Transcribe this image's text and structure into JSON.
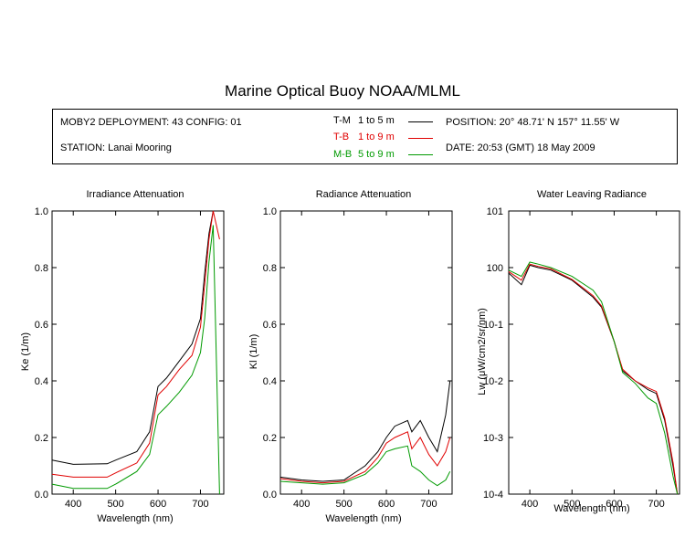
{
  "title": "Marine Optical Buoy NOAA/MLML",
  "info": {
    "deployment": "MOBY2 DEPLOYMENT: 43 CONFIG: 01",
    "station": "STATION: Lanai Mooring",
    "position": "POSITION: 20° 48.71' N   157° 11.55' W",
    "date": "DATE: 20:53 (GMT) 18 May 2009",
    "legend": [
      {
        "code": "T-M",
        "range": "1 to 5  m",
        "color": "#000000"
      },
      {
        "code": "T-B",
        "range": "1 to 9  m",
        "color": "#e00000"
      },
      {
        "code": "M-B",
        "range": "5 to 9  m",
        "color": "#009a00"
      }
    ]
  },
  "chart_data": [
    {
      "type": "line",
      "title": "Irradiance Attenuation",
      "xlabel": "Wavelength (nm)",
      "ylabel": "Ke  (1/m)",
      "xlim": [
        350,
        755
      ],
      "ylim": [
        0,
        1
      ],
      "xticks": [
        "400",
        "500",
        "600",
        "700"
      ],
      "yticks": [
        "0.0",
        "0.2",
        "0.4",
        "0.6",
        "0.8",
        "1.0"
      ],
      "series": [
        {
          "color": "#000000",
          "x": [
            350,
            400,
            480,
            500,
            550,
            580,
            600,
            620,
            650,
            680,
            700,
            710,
            720,
            730,
            745
          ],
          "y": [
            0.12,
            0.105,
            0.107,
            0.12,
            0.15,
            0.22,
            0.38,
            0.41,
            0.47,
            0.53,
            0.62,
            0.78,
            0.92,
            1.0,
            1.0
          ]
        },
        {
          "color": "#e00000",
          "x": [
            350,
            400,
            480,
            500,
            550,
            580,
            600,
            620,
            650,
            680,
            700,
            710,
            720,
            730,
            745
          ],
          "y": [
            0.07,
            0.06,
            0.06,
            0.075,
            0.11,
            0.18,
            0.35,
            0.38,
            0.44,
            0.49,
            0.59,
            0.74,
            0.9,
            1.0,
            0.9
          ]
        },
        {
          "color": "#009a00",
          "x": [
            350,
            400,
            480,
            500,
            550,
            580,
            600,
            620,
            650,
            680,
            700,
            710,
            720,
            730,
            745
          ],
          "y": [
            0.035,
            0.02,
            0.02,
            0.035,
            0.08,
            0.14,
            0.28,
            0.31,
            0.36,
            0.42,
            0.5,
            0.62,
            0.82,
            0.95,
            0.0
          ]
        }
      ]
    },
    {
      "type": "line",
      "title": "Radiance Attenuation",
      "xlabel": "Wavelength (nm)",
      "ylabel": "Kl  (1/m)",
      "xlim": [
        350,
        755
      ],
      "ylim": [
        0,
        1
      ],
      "xticks": [
        "400",
        "500",
        "600",
        "700"
      ],
      "yticks": [
        "0.0",
        "0.2",
        "0.4",
        "0.6",
        "0.8",
        "1.0"
      ],
      "series": [
        {
          "color": "#000000",
          "x": [
            350,
            400,
            450,
            500,
            550,
            580,
            600,
            620,
            650,
            660,
            680,
            700,
            720,
            740,
            750
          ],
          "y": [
            0.06,
            0.05,
            0.045,
            0.05,
            0.1,
            0.15,
            0.2,
            0.24,
            0.26,
            0.22,
            0.26,
            0.2,
            0.15,
            0.28,
            0.4
          ]
        },
        {
          "color": "#e00000",
          "x": [
            350,
            400,
            450,
            500,
            550,
            580,
            600,
            620,
            650,
            660,
            680,
            700,
            720,
            740,
            750
          ],
          "y": [
            0.055,
            0.045,
            0.04,
            0.045,
            0.08,
            0.13,
            0.18,
            0.2,
            0.22,
            0.16,
            0.2,
            0.14,
            0.1,
            0.15,
            0.2
          ]
        },
        {
          "color": "#009a00",
          "x": [
            350,
            400,
            450,
            500,
            550,
            580,
            600,
            620,
            650,
            660,
            680,
            700,
            720,
            740,
            750
          ],
          "y": [
            0.045,
            0.04,
            0.035,
            0.04,
            0.07,
            0.11,
            0.15,
            0.16,
            0.17,
            0.1,
            0.08,
            0.05,
            0.03,
            0.05,
            0.08
          ]
        }
      ]
    },
    {
      "type": "line",
      "title": "Water Leaving Radiance",
      "xlabel": "Wavelength (nm)",
      "ylabel": "Lw  (μW/cm2/sr/nm)",
      "xlim": [
        350,
        755
      ],
      "ylim": [
        0.0001,
        10
      ],
      "yscale": "log",
      "xticks": [
        "400",
        "500",
        "600",
        "700"
      ],
      "yticks": [
        "10-4",
        "10-3",
        "10-2",
        "10-1",
        "100",
        "101"
      ],
      "series": [
        {
          "color": "#000000",
          "x": [
            350,
            380,
            400,
            420,
            450,
            500,
            550,
            570,
            600,
            620,
            650,
            680,
            700,
            720,
            740,
            750
          ],
          "y": [
            0.8,
            0.5,
            1.1,
            1.0,
            0.9,
            0.6,
            0.3,
            0.2,
            0.05,
            0.015,
            0.01,
            0.007,
            0.006,
            0.002,
            0.0003,
            0.0001
          ]
        },
        {
          "color": "#e00000",
          "x": [
            350,
            380,
            400,
            420,
            450,
            500,
            550,
            570,
            600,
            620,
            650,
            680,
            700,
            720,
            740,
            750
          ],
          "y": [
            0.85,
            0.6,
            1.15,
            1.05,
            0.95,
            0.62,
            0.32,
            0.21,
            0.05,
            0.016,
            0.01,
            0.0075,
            0.0065,
            0.0022,
            0.00035,
            0.0001
          ]
        },
        {
          "color": "#009a00",
          "x": [
            350,
            380,
            400,
            420,
            450,
            500,
            550,
            570,
            600,
            620,
            650,
            680,
            700,
            720,
            740,
            750
          ],
          "y": [
            0.9,
            0.7,
            1.25,
            1.15,
            1.0,
            0.7,
            0.4,
            0.25,
            0.05,
            0.014,
            0.009,
            0.005,
            0.004,
            0.0012,
            0.0002,
            0.0001
          ]
        }
      ]
    }
  ]
}
